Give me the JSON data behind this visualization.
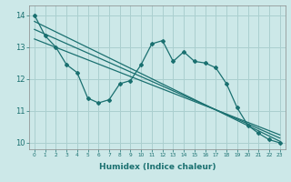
{
  "title": "",
  "xlabel": "Humidex (Indice chaleur)",
  "ylabel": "",
  "xlim": [
    -0.5,
    23.5
  ],
  "ylim": [
    9.8,
    14.3
  ],
  "xticks": [
    0,
    1,
    2,
    3,
    4,
    5,
    6,
    7,
    8,
    9,
    10,
    11,
    12,
    13,
    14,
    15,
    16,
    17,
    18,
    19,
    20,
    21,
    22,
    23
  ],
  "yticks": [
    10,
    11,
    12,
    13,
    14
  ],
  "bg_color": "#cce8e8",
  "grid_color": "#aacfcf",
  "line_color": "#1a7070",
  "jagged_x": [
    0,
    1,
    2,
    3,
    4,
    5,
    6,
    7,
    8,
    9,
    10,
    11,
    12,
    13,
    14,
    15,
    16,
    17,
    18,
    19,
    20,
    21,
    22,
    23
  ],
  "jagged_y": [
    14.0,
    13.35,
    13.0,
    12.45,
    12.2,
    11.4,
    11.25,
    11.35,
    11.85,
    11.95,
    12.45,
    13.1,
    13.2,
    12.55,
    12.85,
    12.55,
    12.5,
    12.35,
    11.85,
    11.1,
    10.55,
    10.3,
    10.1,
    10.0
  ],
  "line1_x": [
    0,
    23
  ],
  "line1_y": [
    13.8,
    10.05
  ],
  "line2_x": [
    0,
    23
  ],
  "line2_y": [
    13.55,
    10.15
  ],
  "line3_x": [
    0,
    23
  ],
  "line3_y": [
    13.25,
    10.25
  ]
}
